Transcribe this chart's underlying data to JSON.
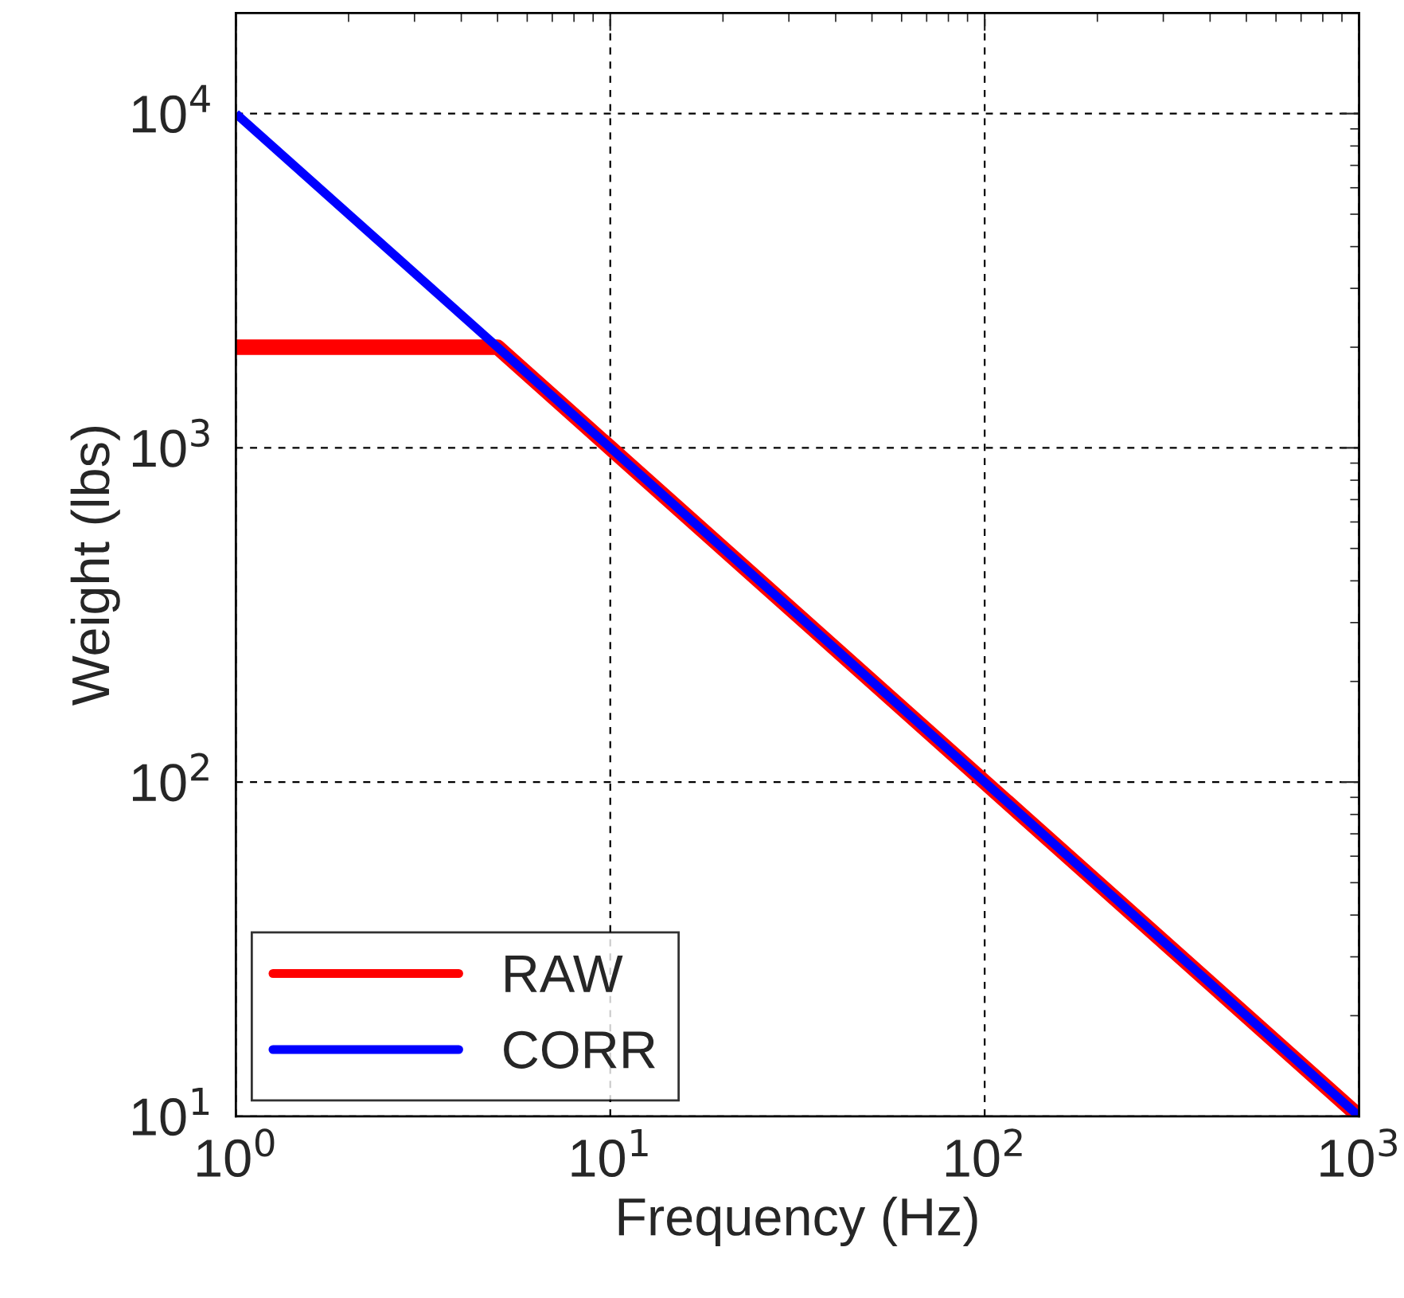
{
  "chart_data": {
    "type": "line",
    "xlabel": "Frequency (Hz)",
    "ylabel": "Weight (lbs)",
    "log": "xy",
    "grid": true,
    "legend": "bottom left",
    "line_style": "solid",
    "marker": "none",
    "xlim": [
      1,
      1000
    ],
    "ylim": [
      10,
      20000
    ],
    "xticks": [
      {
        "value": 1,
        "label": "10$^{0}$"
      },
      {
        "value": 10,
        "label": "10$^{1}$"
      },
      {
        "value": 100,
        "label": "10$^{2}$"
      },
      {
        "value": 1000,
        "label": "10$^{3}$"
      }
    ],
    "yticks": [
      {
        "value": 10,
        "label": "10$^{1}$"
      },
      {
        "value": 100,
        "label": "10$^{2}$"
      },
      {
        "value": 1000,
        "label": "10$^{3}$"
      },
      {
        "value": 10000,
        "label": "10$^{4}$"
      }
    ],
    "series": [
      {
        "name": "RAW",
        "color": "#ff0000",
        "x": [
          1,
          5,
          1000
        ],
        "values": [
          2000,
          2000,
          10
        ]
      },
      {
        "name": "CORR",
        "color": "#0000ff",
        "x": [
          1,
          1000
        ],
        "values": [
          10000,
          10
        ]
      }
    ]
  }
}
